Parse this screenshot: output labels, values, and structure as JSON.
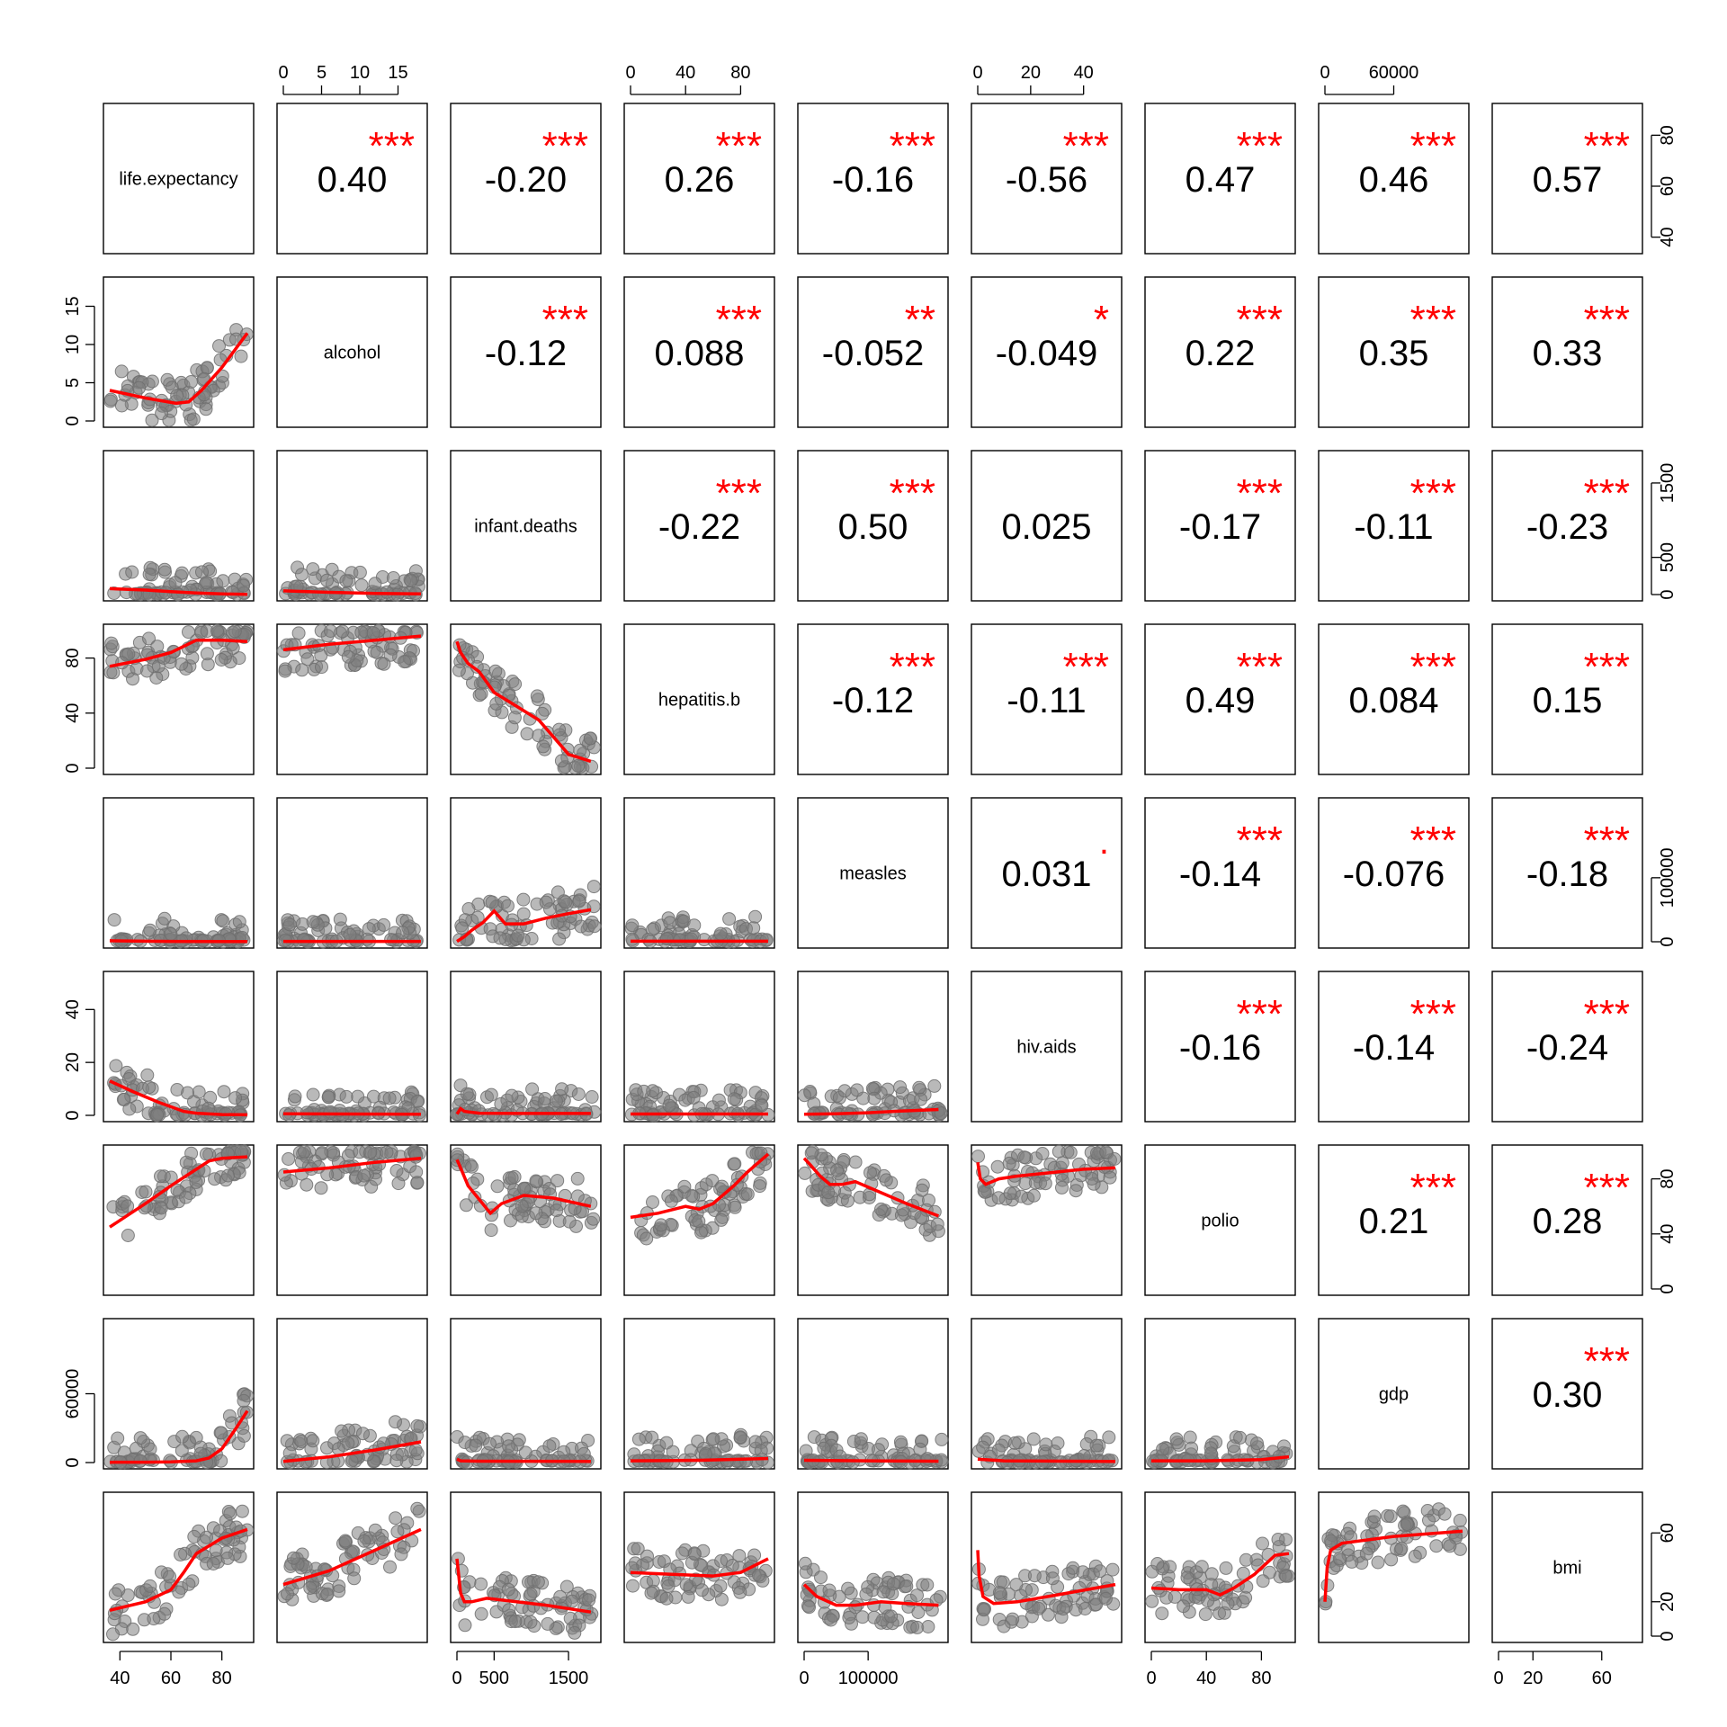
{
  "chart_data": {
    "type": "scatter",
    "variables": [
      "life.expectancy",
      "alcohol",
      "infant.deaths",
      "hepatitis.b",
      "measles",
      "hiv.aids",
      "polio",
      "gdp",
      "bmi"
    ],
    "ranges": [
      [
        36,
        90
      ],
      [
        0,
        18
      ],
      [
        0,
        1850
      ],
      [
        0,
        100
      ],
      [
        0,
        215000
      ],
      [
        0,
        52
      ],
      [
        0,
        100
      ],
      [
        0,
        120000
      ],
      [
        0,
        80
      ]
    ],
    "ticks": [
      [
        40,
        60,
        80
      ],
      [
        0,
        5,
        10,
        15
      ],
      [
        0,
        500,
        1500
      ],
      [
        0,
        40,
        80
      ],
      [
        0,
        100000
      ],
      [
        0,
        20,
        40
      ],
      [
        0,
        40,
        80
      ],
      [
        0,
        60000
      ],
      [
        0,
        20,
        60
      ]
    ],
    "tick_labels": [
      [
        "40",
        "60",
        "80"
      ],
      [
        "0",
        "5",
        "10",
        "15"
      ],
      [
        "0",
        "500",
        "1500"
      ],
      [
        "0",
        "40",
        "80"
      ],
      [
        "0",
        "100000"
      ],
      [
        "0",
        "20",
        "40"
      ],
      [
        "0",
        "40",
        "80"
      ],
      [
        "0",
        "60000"
      ],
      [
        "0",
        "20",
        "60"
      ]
    ],
    "axes": {
      "top": [
        1,
        3,
        5,
        7
      ],
      "bottom": [
        0,
        2,
        4,
        6,
        8
      ],
      "left": [
        1,
        3,
        5,
        7
      ],
      "right": [
        0,
        2,
        4,
        6,
        8
      ]
    },
    "correlations": [
      {
        "row": 0,
        "col": 1,
        "r": "0.40",
        "stars": "***"
      },
      {
        "row": 0,
        "col": 2,
        "r": "-0.20",
        "stars": "***"
      },
      {
        "row": 0,
        "col": 3,
        "r": "0.26",
        "stars": "***"
      },
      {
        "row": 0,
        "col": 4,
        "r": "-0.16",
        "stars": "***"
      },
      {
        "row": 0,
        "col": 5,
        "r": "-0.56",
        "stars": "***"
      },
      {
        "row": 0,
        "col": 6,
        "r": "0.47",
        "stars": "***"
      },
      {
        "row": 0,
        "col": 7,
        "r": "0.46",
        "stars": "***"
      },
      {
        "row": 0,
        "col": 8,
        "r": "0.57",
        "stars": "***"
      },
      {
        "row": 1,
        "col": 2,
        "r": "-0.12",
        "stars": "***"
      },
      {
        "row": 1,
        "col": 3,
        "r": "0.088",
        "stars": "***"
      },
      {
        "row": 1,
        "col": 4,
        "r": "-0.052",
        "stars": "**"
      },
      {
        "row": 1,
        "col": 5,
        "r": "-0.049",
        "stars": "*"
      },
      {
        "row": 1,
        "col": 6,
        "r": "0.22",
        "stars": "***"
      },
      {
        "row": 1,
        "col": 7,
        "r": "0.35",
        "stars": "***"
      },
      {
        "row": 1,
        "col": 8,
        "r": "0.33",
        "stars": "***"
      },
      {
        "row": 2,
        "col": 3,
        "r": "-0.22",
        "stars": "***"
      },
      {
        "row": 2,
        "col": 4,
        "r": "0.50",
        "stars": "***"
      },
      {
        "row": 2,
        "col": 5,
        "r": "0.025",
        "stars": ""
      },
      {
        "row": 2,
        "col": 6,
        "r": "-0.17",
        "stars": "***"
      },
      {
        "row": 2,
        "col": 7,
        "r": "-0.11",
        "stars": "***"
      },
      {
        "row": 2,
        "col": 8,
        "r": "-0.23",
        "stars": "***"
      },
      {
        "row": 3,
        "col": 4,
        "r": "-0.12",
        "stars": "***"
      },
      {
        "row": 3,
        "col": 5,
        "r": "-0.11",
        "stars": "***"
      },
      {
        "row": 3,
        "col": 6,
        "r": "0.49",
        "stars": "***"
      },
      {
        "row": 3,
        "col": 7,
        "r": "0.084",
        "stars": "***"
      },
      {
        "row": 3,
        "col": 8,
        "r": "0.15",
        "stars": "***"
      },
      {
        "row": 4,
        "col": 5,
        "r": "0.031",
        "stars": "."
      },
      {
        "row": 4,
        "col": 6,
        "r": "-0.14",
        "stars": "***"
      },
      {
        "row": 4,
        "col": 7,
        "r": "-0.076",
        "stars": "***"
      },
      {
        "row": 4,
        "col": 8,
        "r": "-0.18",
        "stars": "***"
      },
      {
        "row": 5,
        "col": 6,
        "r": "-0.16",
        "stars": "***"
      },
      {
        "row": 5,
        "col": 7,
        "r": "-0.14",
        "stars": "***"
      },
      {
        "row": 5,
        "col": 8,
        "r": "-0.24",
        "stars": "***"
      },
      {
        "row": 6,
        "col": 7,
        "r": "0.21",
        "stars": "***"
      },
      {
        "row": 6,
        "col": 8,
        "r": "0.28",
        "stars": "***"
      },
      {
        "row": 7,
        "col": 8,
        "r": "0.30",
        "stars": "***"
      }
    ],
    "smooth_lines": {
      "1-0": [
        [
          36,
          4
        ],
        [
          50,
          3
        ],
        [
          62,
          2.3
        ],
        [
          67,
          2.5
        ],
        [
          72,
          4
        ],
        [
          80,
          7
        ],
        [
          90,
          11.5
        ]
      ],
      "2-0": [
        [
          36,
          80
        ],
        [
          50,
          60
        ],
        [
          60,
          40
        ],
        [
          70,
          20
        ],
        [
          80,
          8
        ],
        [
          90,
          3
        ]
      ],
      "2-1": [
        [
          0,
          50
        ],
        [
          6,
          30
        ],
        [
          12,
          15
        ],
        [
          18,
          10
        ]
      ],
      "3-0": [
        [
          36,
          74
        ],
        [
          50,
          79
        ],
        [
          60,
          84
        ],
        [
          70,
          93
        ],
        [
          80,
          93
        ],
        [
          90,
          92
        ]
      ],
      "3-1": [
        [
          0,
          86
        ],
        [
          6,
          90
        ],
        [
          12,
          93
        ],
        [
          18,
          96
        ]
      ],
      "3-2": [
        [
          0,
          92
        ],
        [
          50,
          84
        ],
        [
          150,
          76
        ],
        [
          300,
          70
        ],
        [
          500,
          55
        ],
        [
          800,
          45
        ],
        [
          1100,
          35
        ],
        [
          1500,
          10
        ],
        [
          1800,
          5
        ]
      ],
      "4-0": [
        [
          36,
          1500
        ],
        [
          50,
          800
        ],
        [
          60,
          500
        ],
        [
          90,
          300
        ]
      ],
      "4-1": [
        [
          0,
          500
        ],
        [
          18,
          500
        ]
      ],
      "4-2": [
        [
          0,
          500
        ],
        [
          100,
          8000
        ],
        [
          200,
          18000
        ],
        [
          350,
          30000
        ],
        [
          500,
          48000
        ],
        [
          650,
          28000
        ],
        [
          900,
          28000
        ],
        [
          1200,
          37000
        ],
        [
          1500,
          44000
        ],
        [
          1800,
          50000
        ]
      ],
      "4-3": [
        [
          0,
          800
        ],
        [
          100,
          800
        ]
      ],
      "4-4": [],
      "5-0": [
        [
          36,
          13
        ],
        [
          45,
          9
        ],
        [
          55,
          5
        ],
        [
          65,
          1.5
        ],
        [
          70,
          0.8
        ],
        [
          80,
          0.3
        ],
        [
          90,
          0.2
        ]
      ],
      "5-1": [
        [
          0,
          0.6
        ],
        [
          8,
          0.5
        ],
        [
          18,
          0.4
        ]
      ],
      "5-2": [
        [
          0,
          0.5
        ],
        [
          50,
          2.5
        ],
        [
          100,
          1.5
        ],
        [
          300,
          0.8
        ],
        [
          800,
          0.7
        ],
        [
          1800,
          0.7
        ]
      ],
      "5-3": [
        [
          0,
          0.5
        ],
        [
          100,
          0.5
        ]
      ],
      "5-4": [
        [
          0,
          0.4
        ],
        [
          50000,
          0.6
        ],
        [
          100000,
          1
        ],
        [
          150000,
          1.6
        ],
        [
          210000,
          2.2
        ]
      ],
      "6-0": [
        [
          36,
          45
        ],
        [
          50,
          62
        ],
        [
          60,
          75
        ],
        [
          70,
          87
        ],
        [
          75,
          93
        ],
        [
          80,
          95
        ],
        [
          90,
          96
        ]
      ],
      "6-1": [
        [
          0,
          85
        ],
        [
          6,
          88
        ],
        [
          12,
          92
        ],
        [
          18,
          95
        ]
      ],
      "6-2": [
        [
          0,
          94
        ],
        [
          50,
          88
        ],
        [
          150,
          75
        ],
        [
          300,
          65
        ],
        [
          450,
          55
        ],
        [
          600,
          62
        ],
        [
          900,
          68
        ],
        [
          1300,
          66
        ],
        [
          1800,
          60
        ]
      ],
      "6-3": [
        [
          0,
          52
        ],
        [
          20,
          55
        ],
        [
          40,
          60
        ],
        [
          50,
          58
        ],
        [
          60,
          62
        ],
        [
          75,
          75
        ],
        [
          85,
          85
        ],
        [
          100,
          98
        ]
      ],
      "6-4": [
        [
          0,
          95
        ],
        [
          10000,
          90
        ],
        [
          25000,
          82
        ],
        [
          40000,
          76
        ],
        [
          60000,
          76
        ],
        [
          80000,
          78
        ],
        [
          120000,
          70
        ],
        [
          160000,
          62
        ],
        [
          210000,
          53
        ]
      ],
      "6-5": [
        [
          0,
          92
        ],
        [
          1,
          80
        ],
        [
          3,
          76
        ],
        [
          8,
          80
        ],
        [
          15,
          82
        ],
        [
          25,
          84
        ],
        [
          40,
          87
        ],
        [
          52,
          88
        ]
      ],
      "7-0": [
        [
          36,
          200
        ],
        [
          50,
          300
        ],
        [
          60,
          600
        ],
        [
          70,
          1500
        ],
        [
          75,
          4000
        ],
        [
          80,
          12000
        ],
        [
          85,
          28000
        ],
        [
          90,
          45000
        ]
      ],
      "7-1": [
        [
          0,
          1000
        ],
        [
          6,
          5000
        ],
        [
          12,
          11000
        ],
        [
          18,
          18000
        ]
      ],
      "7-2": [
        [
          0,
          3000
        ],
        [
          50,
          1500
        ],
        [
          300,
          1200
        ],
        [
          1800,
          1000
        ]
      ],
      "7-3": [
        [
          0,
          1500
        ],
        [
          50,
          2000
        ],
        [
          100,
          3500
        ]
      ],
      "7-4": [
        [
          0,
          2000
        ],
        [
          100000,
          1500
        ],
        [
          210000,
          1200
        ]
      ],
      "7-5": [
        [
          0,
          3000
        ],
        [
          10,
          1500
        ],
        [
          52,
          1000
        ]
      ],
      "7-6": [
        [
          0,
          1500
        ],
        [
          40,
          1500
        ],
        [
          80,
          2500
        ],
        [
          100,
          5000
        ]
      ],
      "8-0": [
        [
          36,
          15
        ],
        [
          50,
          20
        ],
        [
          60,
          27
        ],
        [
          65,
          37
        ],
        [
          70,
          48
        ],
        [
          80,
          57
        ],
        [
          90,
          62
        ]
      ],
      "8-1": [
        [
          0,
          30
        ],
        [
          6,
          38
        ],
        [
          12,
          50
        ],
        [
          18,
          62
        ]
      ],
      "8-2": [
        [
          0,
          45
        ],
        [
          50,
          25
        ],
        [
          100,
          20
        ],
        [
          200,
          20
        ],
        [
          400,
          22
        ],
        [
          800,
          20
        ],
        [
          1200,
          18
        ],
        [
          1800,
          14
        ]
      ],
      "8-3": [
        [
          0,
          37
        ],
        [
          30,
          36
        ],
        [
          60,
          35
        ],
        [
          80,
          37
        ],
        [
          90,
          41
        ],
        [
          100,
          45
        ]
      ],
      "8-4": [
        [
          0,
          30
        ],
        [
          20000,
          23
        ],
        [
          50000,
          18
        ],
        [
          80000,
          18
        ],
        [
          120000,
          20
        ],
        [
          160000,
          19
        ],
        [
          210000,
          18
        ]
      ],
      "8-5": [
        [
          0,
          50
        ],
        [
          0.5,
          35
        ],
        [
          2,
          23
        ],
        [
          6,
          19
        ],
        [
          15,
          20
        ],
        [
          30,
          24
        ],
        [
          52,
          30
        ]
      ],
      "8-6": [
        [
          0,
          28
        ],
        [
          20,
          27
        ],
        [
          40,
          27
        ],
        [
          50,
          24
        ],
        [
          60,
          28
        ],
        [
          75,
          36
        ],
        [
          90,
          47
        ],
        [
          100,
          48
        ]
      ],
      "8-7": [
        [
          0,
          20
        ],
        [
          2000,
          40
        ],
        [
          5000,
          50
        ],
        [
          15000,
          54
        ],
        [
          60000,
          58
        ],
        [
          100000,
          60
        ],
        [
          120000,
          61
        ]
      ]
    }
  }
}
